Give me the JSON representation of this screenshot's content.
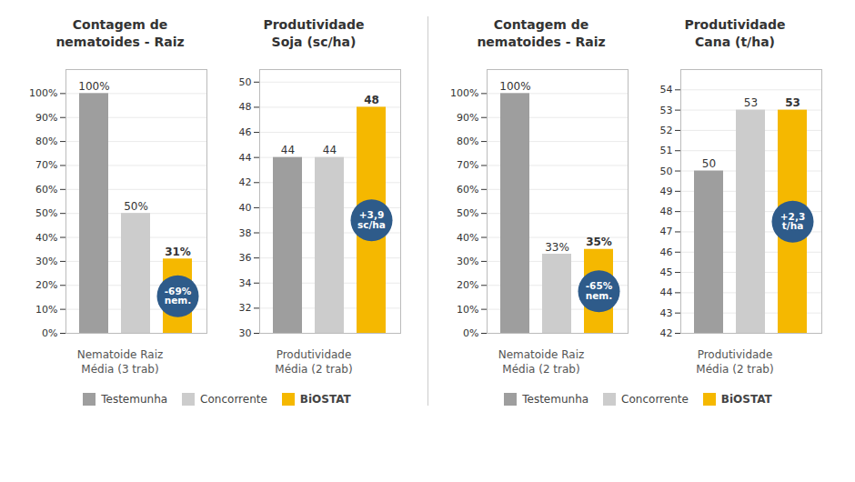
{
  "chart_data": [
    {
      "type": "bar",
      "title": "Contagem de\nnematoides - Raiz",
      "xlabel": "Nematoide Raiz\nMédia (3 trab)",
      "categories": [
        "Testemunha",
        "Concorrente",
        "BiOSTAT"
      ],
      "values": [
        100,
        50,
        31
      ],
      "value_labels": [
        "100%",
        "50%",
        "31%"
      ],
      "colors": [
        "#9e9e9e",
        "#cccccc",
        "#f5b800"
      ],
      "ylim": [
        0,
        110
      ],
      "yticks": [
        {
          "value": 0,
          "label": "0%"
        },
        {
          "value": 10,
          "label": "10%"
        },
        {
          "value": 20,
          "label": "20%"
        },
        {
          "value": 30,
          "label": "30%"
        },
        {
          "value": 40,
          "label": "40%"
        },
        {
          "value": 50,
          "label": "50%"
        },
        {
          "value": 60,
          "label": "60%"
        },
        {
          "value": 70,
          "label": "70%"
        },
        {
          "value": 80,
          "label": "80%"
        },
        {
          "value": 90,
          "label": "90%"
        },
        {
          "value": 100,
          "label": "100%"
        }
      ],
      "grid": true,
      "data_labels": true,
      "tick_labels": "y",
      "legend": "bottom",
      "annotations": [
        {
          "text": "-69%\nnem.",
          "category": "BiOSTAT",
          "color": "#2e5b8a"
        }
      ]
    },
    {
      "type": "bar",
      "title": "Produtividade\nSoja (sc/ha)",
      "xlabel": "Produtividade\nMédia (2 trab)",
      "categories": [
        "Testemunha",
        "Concorrente",
        "BiOSTAT"
      ],
      "values": [
        44,
        44,
        48
      ],
      "colors": [
        "#9e9e9e",
        "#cccccc",
        "#f5b800"
      ],
      "ylim": [
        30,
        51
      ],
      "yticks": [
        30,
        32,
        34,
        36,
        38,
        40,
        42,
        44,
        46,
        48,
        50
      ],
      "grid": true,
      "data_labels": true,
      "tick_labels": "y",
      "legend": "bottom",
      "annotations": [
        {
          "text": "+3,9\nsc/ha",
          "category": "BiOSTAT",
          "color": "#2e5b8a"
        }
      ]
    },
    {
      "type": "bar",
      "title": "Contagem de\nnematoides - Raiz",
      "xlabel": "Nematoide Raiz\nMédia (2 trab)",
      "categories": [
        "Testemunha",
        "Concorrente",
        "BiOSTAT"
      ],
      "values": [
        100,
        33,
        35
      ],
      "value_labels": [
        "100%",
        "33%",
        "35%"
      ],
      "colors": [
        "#9e9e9e",
        "#cccccc",
        "#f5b800"
      ],
      "ylim": [
        0,
        110
      ],
      "yticks": [
        {
          "value": 0,
          "label": "0%"
        },
        {
          "value": 10,
          "label": "10%"
        },
        {
          "value": 20,
          "label": "20%"
        },
        {
          "value": 30,
          "label": "30%"
        },
        {
          "value": 40,
          "label": "40%"
        },
        {
          "value": 50,
          "label": "50%"
        },
        {
          "value": 60,
          "label": "60%"
        },
        {
          "value": 70,
          "label": "70%"
        },
        {
          "value": 80,
          "label": "80%"
        },
        {
          "value": 90,
          "label": "90%"
        },
        {
          "value": 100,
          "label": "100%"
        }
      ],
      "grid": true,
      "data_labels": true,
      "tick_labels": "y",
      "legend": "bottom",
      "annotations": [
        {
          "text": "-65%\nnem.",
          "category": "BiOSTAT",
          "color": "#2e5b8a"
        }
      ]
    },
    {
      "type": "bar",
      "title": "Produtividade\nCana (t/ha)",
      "xlabel": "Produtividade\nMédia (2 trab)",
      "categories": [
        "Testemunha",
        "Concorrente",
        "BiOSTAT"
      ],
      "values": [
        50,
        53,
        53
      ],
      "colors": [
        "#9e9e9e",
        "#cccccc",
        "#f5b800"
      ],
      "ylim": [
        42,
        55
      ],
      "yticks": [
        42,
        43,
        44,
        45,
        46,
        47,
        48,
        49,
        50,
        51,
        52,
        53,
        54
      ],
      "grid": true,
      "data_labels": true,
      "tick_labels": "y",
      "legend": "bottom",
      "annotations": [
        {
          "text": "+2,3\nt/ha",
          "category": "BiOSTAT",
          "color": "#2e5b8a"
        }
      ]
    }
  ]
}
